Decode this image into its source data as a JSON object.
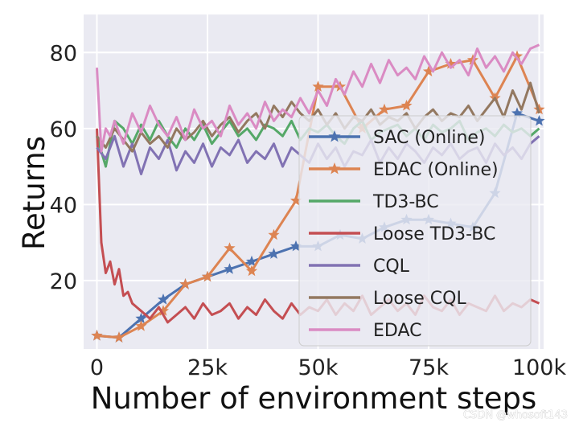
{
  "chart_data": {
    "type": "line",
    "title": "",
    "xlabel": "Number of environment steps",
    "ylabel": "Returns",
    "xlim": [
      -3000,
      101000
    ],
    "ylim": [
      2,
      90
    ],
    "x_ticks": [
      0,
      25000,
      50000,
      75000,
      100000
    ],
    "x_tick_labels": [
      "0",
      "25k",
      "50k",
      "75k",
      "100k"
    ],
    "y_ticks": [
      20,
      40,
      60,
      80
    ],
    "y_tick_labels": [
      "20",
      "40",
      "60",
      "80"
    ],
    "grid": true,
    "legend_position": "center-right",
    "series": [
      {
        "name": "SAC (Online)",
        "color": "#4c72b0",
        "marker": "star",
        "x": [
          0,
          5000,
          10000,
          15000,
          20000,
          25000,
          30000,
          35000,
          40000,
          45000,
          50000,
          55000,
          60000,
          65000,
          70000,
          75000,
          80000,
          85000,
          90000,
          95000,
          100000
        ],
        "y": [
          5.5,
          5,
          10,
          15,
          19,
          21,
          23,
          25,
          27,
          29,
          29,
          32,
          31,
          34,
          36,
          36,
          35,
          34,
          43,
          64,
          62
        ]
      },
      {
        "name": "EDAC (Online)",
        "color": "#dd8452",
        "marker": "star",
        "x": [
          0,
          5000,
          10000,
          15000,
          20000,
          25000,
          30000,
          35000,
          40000,
          45000,
          50000,
          55000,
          60000,
          65000,
          70000,
          75000,
          80000,
          85000,
          90000,
          95000,
          100000
        ],
        "y": [
          5.5,
          5,
          8,
          12,
          19,
          21,
          28.5,
          22.5,
          32,
          41,
          71,
          71,
          60,
          65,
          66,
          75,
          77,
          78,
          68,
          79,
          65
        ]
      },
      {
        "name": "TD3-BC",
        "color": "#55a868",
        "marker": "none",
        "x": [
          0,
          2000,
          4000,
          6000,
          8000,
          10000,
          12000,
          14000,
          16000,
          18000,
          20000,
          22000,
          24000,
          26000,
          28000,
          30000,
          32000,
          34000,
          36000,
          38000,
          40000,
          42000,
          44000,
          46000,
          48000,
          50000,
          52000,
          54000,
          56000,
          58000,
          60000,
          62000,
          64000,
          66000,
          68000,
          70000,
          72000,
          74000,
          76000,
          78000,
          80000,
          82000,
          84000,
          86000,
          88000,
          90000,
          92000,
          94000,
          96000,
          98000,
          100000
        ],
        "y": [
          58,
          50,
          62,
          60,
          56,
          61,
          57,
          62,
          58,
          55,
          60,
          57,
          61,
          56,
          59,
          62,
          58,
          60,
          57,
          61,
          60,
          58,
          62,
          57,
          60,
          59,
          61,
          58,
          56,
          60,
          62,
          57,
          59,
          60,
          61,
          58,
          60,
          57,
          61,
          59,
          60,
          62,
          57,
          59,
          60,
          58,
          61,
          59,
          60,
          58,
          60
        ]
      },
      {
        "name": "Loose TD3-BC",
        "color": "#c44e52",
        "marker": "none",
        "x": [
          0,
          1000,
          2000,
          3000,
          4000,
          5000,
          6000,
          7000,
          8000,
          10000,
          12000,
          14000,
          16000,
          18000,
          20000,
          22000,
          24000,
          26000,
          28000,
          30000,
          32000,
          34000,
          36000,
          38000,
          40000,
          42000,
          44000,
          46000,
          48000,
          50000,
          52000,
          54000,
          56000,
          58000,
          60000,
          62000,
          64000,
          66000,
          68000,
          70000,
          72000,
          74000,
          76000,
          78000,
          80000,
          82000,
          84000,
          86000,
          88000,
          90000,
          92000,
          94000,
          96000,
          98000,
          100000
        ],
        "y": [
          60,
          30,
          22,
          25,
          19,
          23,
          16,
          17,
          14,
          12,
          10,
          13,
          9,
          11,
          13,
          10,
          14,
          11,
          12,
          14,
          10,
          13,
          11,
          15,
          12,
          10,
          14,
          11,
          13,
          12,
          15,
          11,
          14,
          12,
          16,
          11,
          13,
          15,
          12,
          14,
          11,
          16,
          13,
          12,
          15,
          11,
          14,
          13,
          12,
          16,
          12,
          14,
          13,
          15,
          14
        ]
      },
      {
        "name": "CQL",
        "color": "#8172b3",
        "marker": "none",
        "x": [
          0,
          2000,
          4000,
          6000,
          8000,
          10000,
          12000,
          14000,
          16000,
          18000,
          20000,
          22000,
          24000,
          26000,
          28000,
          30000,
          32000,
          34000,
          36000,
          38000,
          40000,
          42000,
          44000,
          46000,
          48000,
          50000,
          52000,
          54000,
          56000,
          58000,
          60000,
          62000,
          64000,
          66000,
          68000,
          70000,
          72000,
          74000,
          76000,
          78000,
          80000,
          82000,
          84000,
          86000,
          88000,
          90000,
          92000,
          94000,
          96000,
          98000,
          100000
        ],
        "y": [
          55,
          52,
          58,
          50,
          56,
          48,
          55,
          52,
          57,
          49,
          54,
          51,
          56,
          50,
          55,
          53,
          57,
          51,
          54,
          52,
          56,
          50,
          55,
          53,
          51,
          56,
          52,
          55,
          50,
          54,
          53,
          57,
          51,
          55,
          52,
          56,
          54,
          51,
          55,
          53,
          56,
          52,
          54,
          55,
          51,
          56,
          53,
          55,
          52,
          56,
          58
        ]
      },
      {
        "name": "Loose CQL",
        "color": "#937860",
        "marker": "none",
        "x": [
          0,
          2000,
          4000,
          6000,
          8000,
          10000,
          12000,
          14000,
          16000,
          18000,
          20000,
          22000,
          24000,
          26000,
          28000,
          30000,
          32000,
          34000,
          36000,
          38000,
          40000,
          42000,
          44000,
          46000,
          48000,
          50000,
          52000,
          54000,
          56000,
          58000,
          60000,
          62000,
          64000,
          66000,
          68000,
          70000,
          72000,
          74000,
          76000,
          78000,
          80000,
          82000,
          84000,
          86000,
          88000,
          90000,
          92000,
          94000,
          96000,
          98000,
          100000
        ],
        "y": [
          58,
          55,
          60,
          57,
          54,
          59,
          56,
          58,
          55,
          60,
          57,
          59,
          62,
          58,
          61,
          63,
          59,
          62,
          64,
          60,
          66,
          63,
          67,
          64,
          62,
          65,
          61,
          64,
          60,
          63,
          62,
          65,
          61,
          63,
          62,
          64,
          60,
          63,
          65,
          62,
          64,
          63,
          66,
          62,
          65,
          68,
          63,
          70,
          65,
          72,
          64
        ]
      },
      {
        "name": "EDAC",
        "color": "#da8bc3",
        "marker": "none",
        "x": [
          0,
          1000,
          2000,
          3000,
          4000,
          6000,
          8000,
          10000,
          12000,
          14000,
          16000,
          18000,
          20000,
          22000,
          24000,
          26000,
          28000,
          30000,
          32000,
          34000,
          36000,
          38000,
          40000,
          42000,
          44000,
          46000,
          48000,
          50000,
          52000,
          54000,
          56000,
          58000,
          60000,
          62000,
          64000,
          66000,
          68000,
          70000,
          72000,
          74000,
          76000,
          78000,
          80000,
          82000,
          84000,
          86000,
          88000,
          90000,
          92000,
          94000,
          96000,
          98000,
          100000
        ],
        "y": [
          76,
          54,
          60,
          58,
          62,
          56,
          64,
          59,
          66,
          61,
          58,
          63,
          57,
          65,
          60,
          62,
          58,
          66,
          61,
          64,
          60,
          67,
          62,
          65,
          63,
          68,
          64,
          70,
          66,
          73,
          69,
          75,
          71,
          77,
          72,
          78,
          74,
          76,
          73,
          79,
          75,
          80,
          76,
          78,
          74,
          81,
          76,
          79,
          75,
          80,
          77,
          81,
          82
        ]
      }
    ]
  },
  "watermark": "CSDN @whosoft143"
}
